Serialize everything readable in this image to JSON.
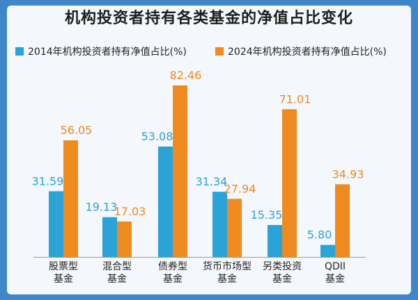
{
  "chart_data": {
    "type": "bar",
    "title": "机构投资者持有各类基金的净值占比变化",
    "categories": [
      {
        "line1": "股票型",
        "line2": "基金"
      },
      {
        "line1": "混合型",
        "line2": "基金"
      },
      {
        "line1": "债券型",
        "line2": "基金"
      },
      {
        "line1": "货币市场型",
        "line2": "基金"
      },
      {
        "line1": "另类投资",
        "line2": "基金"
      },
      {
        "line1": "QDII",
        "line2": "基金"
      }
    ],
    "series": [
      {
        "name": "2014年机构投资者持有净值占比(%)",
        "color": "#2aa3d8",
        "values": [
          31.59,
          19.13,
          53.08,
          31.34,
          15.35,
          5.8
        ],
        "labels": [
          "31.59",
          "19.13",
          "53.08",
          "31.34",
          "15.35",
          "5.80"
        ]
      },
      {
        "name": "2024年机构投资者持有净值占比(%)",
        "color": "#ef8a1f",
        "values": [
          56.05,
          17.03,
          82.46,
          27.94,
          71.01,
          34.93
        ],
        "labels": [
          "56.05",
          "17.03",
          "82.46",
          "27.94",
          "71.01",
          "34.93"
        ]
      }
    ],
    "xlabel": "",
    "ylabel": "",
    "ylim": [
      0,
      82.46
    ],
    "legend_position": "top-left",
    "grid": false
  }
}
